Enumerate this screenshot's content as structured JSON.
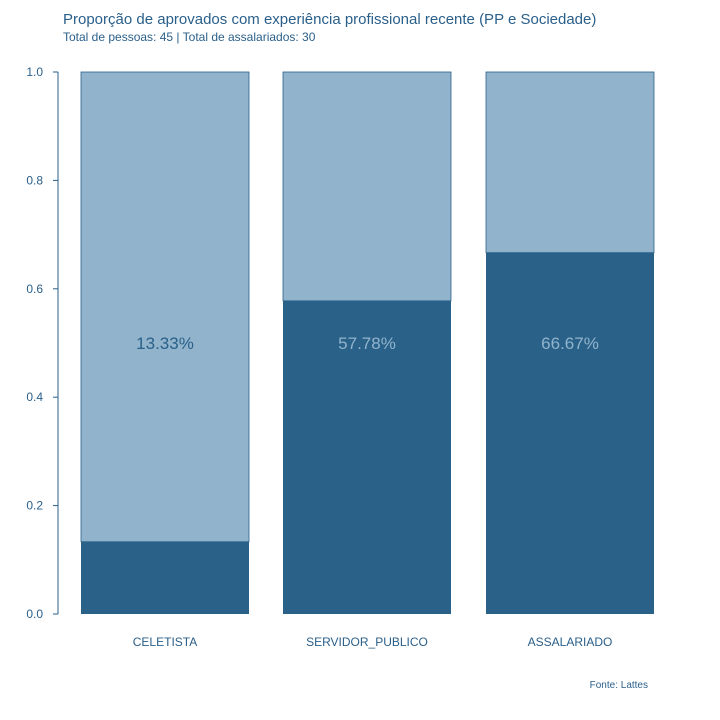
{
  "chart_data": {
    "type": "bar",
    "stacked": true,
    "title": "Proporção de aprovados com experiência profissional recente (PP e Sociedade)",
    "subtitle": "Total de pessoas: 45 | Total de assalariados: 30",
    "caption": "Fonte: Lattes",
    "categories": [
      "CELETISTA",
      "SERVIDOR_PUBLICO",
      "ASSALARIADO"
    ],
    "values": [
      0.1333,
      0.5778,
      0.6667
    ],
    "labels": [
      "13.33%",
      "57.78%",
      "66.67%"
    ],
    "ylim": [
      0,
      1
    ],
    "yticks": [
      "0.0",
      "0.2",
      "0.4",
      "0.6",
      "0.8",
      "1.0"
    ],
    "grid": false,
    "colors": {
      "value": "#2a6189",
      "remainder": "#91b3cc",
      "text": "#2a5f8a",
      "label_light": "#91b3cc"
    }
  }
}
